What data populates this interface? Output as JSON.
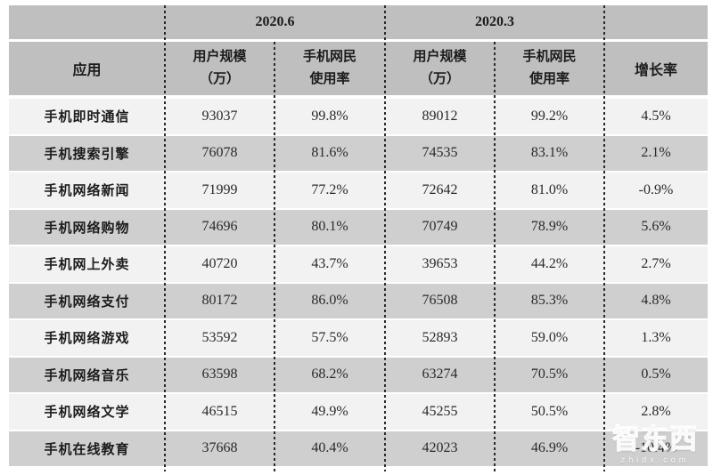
{
  "chart_data": {
    "type": "table",
    "period_headers": [
      "2020.6",
      "2020.3"
    ],
    "headers": {
      "app": "应用",
      "user_scale": "用户规模\n（万）",
      "usage_rate": "手机网民\n使用率",
      "growth": "增长率"
    },
    "rows": [
      {
        "app": "手机即时通信",
        "values": [
          "93037",
          "99.8%",
          "89012",
          "99.2%",
          "4.5%"
        ]
      },
      {
        "app": "手机搜索引擎",
        "values": [
          "76078",
          "81.6%",
          "74535",
          "83.1%",
          "2.1%"
        ]
      },
      {
        "app": "手机网络新闻",
        "values": [
          "71999",
          "77.2%",
          "72642",
          "81.0%",
          "-0.9%"
        ]
      },
      {
        "app": "手机网络购物",
        "values": [
          "74696",
          "80.1%",
          "70749",
          "78.9%",
          "5.6%"
        ]
      },
      {
        "app": "手机网上外卖",
        "values": [
          "40720",
          "43.7%",
          "39653",
          "44.2%",
          "2.7%"
        ]
      },
      {
        "app": "手机网络支付",
        "values": [
          "80172",
          "86.0%",
          "76508",
          "85.3%",
          "4.8%"
        ]
      },
      {
        "app": "手机网络游戏",
        "values": [
          "53592",
          "57.5%",
          "52893",
          "59.0%",
          "1.3%"
        ]
      },
      {
        "app": "手机网络音乐",
        "values": [
          "63598",
          "68.2%",
          "63274",
          "70.5%",
          "0.5%"
        ]
      },
      {
        "app": "手机网络文学",
        "values": [
          "46515",
          "49.9%",
          "45255",
          "50.5%",
          "2.8%"
        ]
      },
      {
        "app": "手机在线教育",
        "values": [
          "37668",
          "40.4%",
          "42023",
          "46.9%",
          "-10.4%"
        ]
      }
    ]
  },
  "watermark": {
    "logo": "智东西",
    "domain": "zhidx.com"
  },
  "colors": {
    "header_bg": "#bfbfbf",
    "row_dark": "#cfcfcf",
    "row_light": "#f2f2f2",
    "text": "#1c1c1c",
    "divider": "#2a2a2a",
    "background": "#ffffff"
  }
}
